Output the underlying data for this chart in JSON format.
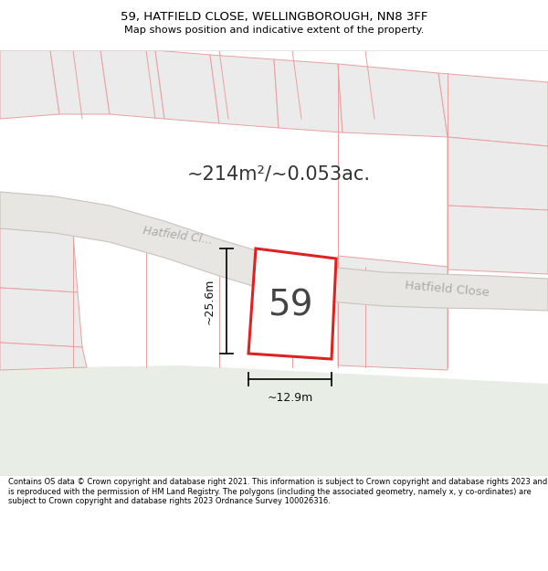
{
  "title_line1": "59, HATFIELD CLOSE, WELLINGBOROUGH, NN8 3FF",
  "title_line2": "Map shows position and indicative extent of the property.",
  "area_text": "~214m²/~0.053ac.",
  "number_label": "59",
  "dim_width": "~12.9m",
  "dim_height": "~25.6m",
  "road_label": "Hatfield Close",
  "road_label_left": "Hatfield Cl...",
  "footer_text": "Contains OS data © Crown copyright and database right 2021. This information is subject to Crown copyright and database rights 2023 and is reproduced with the permission of HM Land Registry. The polygons (including the associated geometry, namely x, y co-ordinates) are subject to Crown copyright and database rights 2023 Ordnance Survey 100026316.",
  "map_bg": "#f7f6f4",
  "plot_fill": "#ffffff",
  "plot_edge": "#dd2222",
  "neighbor_fill": "#ebebeb",
  "neighbor_edge": "#e8a0a0",
  "road_fill": "#e8e6e2",
  "road_edge": "#c8c4bc",
  "green_fill": "#e8ede6",
  "title_bg": "#ffffff",
  "footer_bg": "#ffffff",
  "dim_color": "#111111",
  "road_text_color": "#aaaaaa",
  "label_color": "#333333"
}
